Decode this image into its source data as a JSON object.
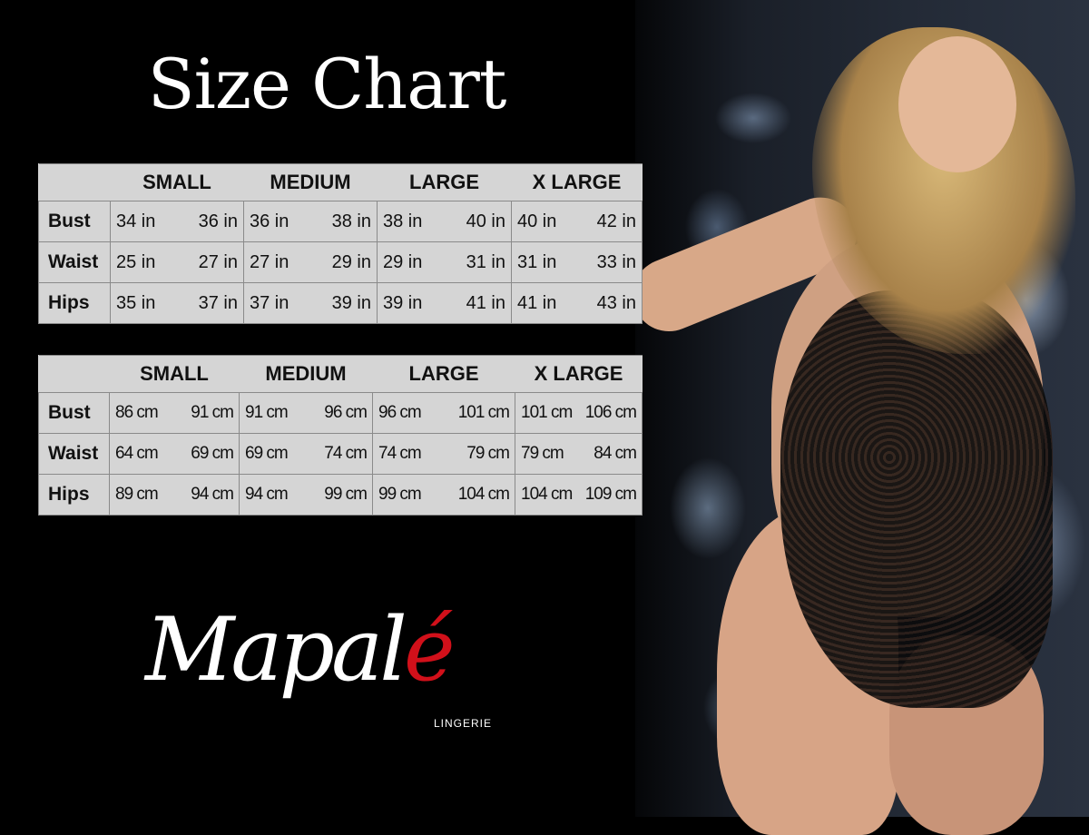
{
  "title": "Size Chart",
  "sizes": [
    "SMALL",
    "MEDIUM",
    "LARGE",
    "X LARGE"
  ],
  "inches": {
    "rows": [
      {
        "label": "Bust",
        "values": [
          "34 in",
          "36 in",
          "36 in",
          "38 in",
          "38 in",
          "40 in",
          "40 in",
          "42 in"
        ]
      },
      {
        "label": "Waist",
        "values": [
          "25 in",
          "27 in",
          "27 in",
          "29 in",
          "29 in",
          "31 in",
          "31 in",
          "33 in"
        ]
      },
      {
        "label": "Hips",
        "values": [
          "35 in",
          "37 in",
          "37 in",
          "39 in",
          "39 in",
          "41 in",
          "41 in",
          "43 in"
        ]
      }
    ]
  },
  "cm": {
    "rows": [
      {
        "label": "Bust",
        "values": [
          "86 cm",
          "91 cm",
          "91 cm",
          "96 cm",
          "96 cm",
          "101 cm",
          "101 cm",
          "106 cm"
        ]
      },
      {
        "label": "Waist",
        "values": [
          "64 cm",
          "69 cm",
          "69 cm",
          "74 cm",
          "74 cm",
          "79 cm",
          "79 cm",
          "84 cm"
        ]
      },
      {
        "label": "Hips",
        "values": [
          "89 cm",
          "94 cm",
          "94 cm",
          "99 cm",
          "99 cm",
          "104 cm",
          "104 cm",
          "109 cm"
        ]
      }
    ]
  },
  "logo": {
    "word": "Mapal",
    "accent": "é",
    "sub": "LINGERIE",
    "accent_color": "#d1101a"
  }
}
